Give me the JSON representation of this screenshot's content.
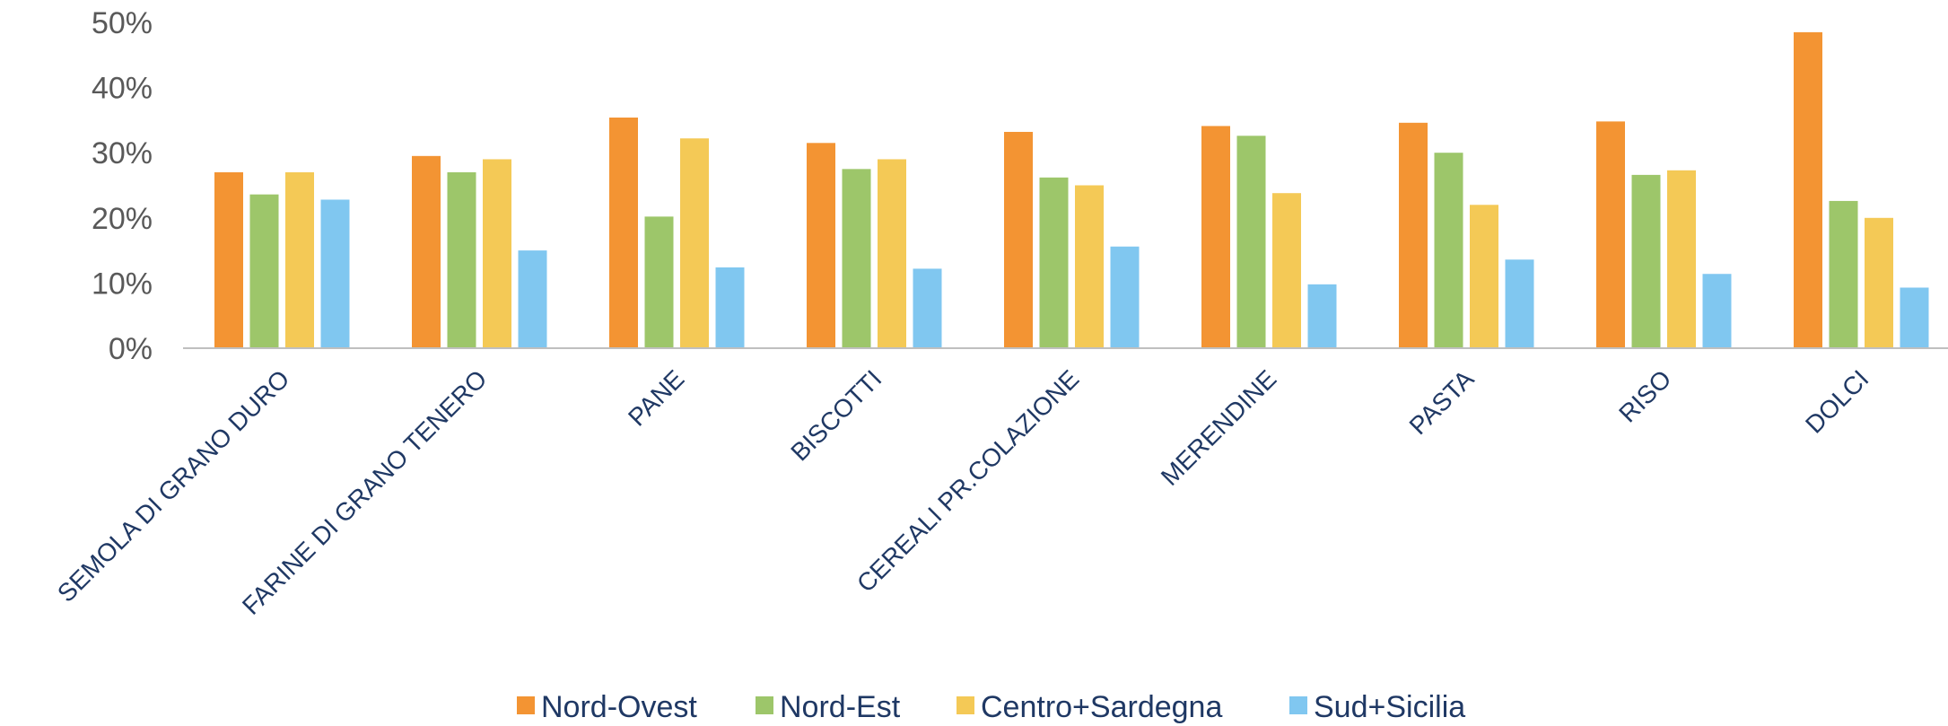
{
  "chart_data": {
    "type": "bar",
    "title": "",
    "xlabel": "",
    "ylabel": "",
    "ylim": [
      0,
      0.5
    ],
    "yticks": [
      "0%",
      "10%",
      "20%",
      "30%",
      "40%",
      "50%"
    ],
    "grid": false,
    "legend_position": "bottom",
    "categories": [
      "SEMOLA DI GRANO DURO",
      "FARINE DI GRANO TENERO",
      "PANE",
      "BISCOTTI",
      "CEREALI PR.COLAZIONE",
      "MERENDINE",
      "PASTA",
      "RISO",
      "DOLCI"
    ],
    "series": [
      {
        "name": "Nord-Ovest",
        "color": "#f39433",
        "values": [
          0.27,
          0.295,
          0.354,
          0.315,
          0.332,
          0.341,
          0.346,
          0.348,
          0.485
        ]
      },
      {
        "name": "Nord-Est",
        "color": "#9dc66a",
        "values": [
          0.236,
          0.27,
          0.202,
          0.275,
          0.262,
          0.326,
          0.3,
          0.266,
          0.226
        ]
      },
      {
        "name": "Centro+Sardegna",
        "color": "#f4c956",
        "values": [
          0.27,
          0.29,
          0.322,
          0.29,
          0.25,
          0.238,
          0.22,
          0.273,
          0.2
        ]
      },
      {
        "name": "Sud+Sicilia",
        "color": "#80c7f0",
        "values": [
          0.228,
          0.15,
          0.124,
          0.122,
          0.156,
          0.098,
          0.136,
          0.114,
          0.093
        ]
      }
    ]
  }
}
